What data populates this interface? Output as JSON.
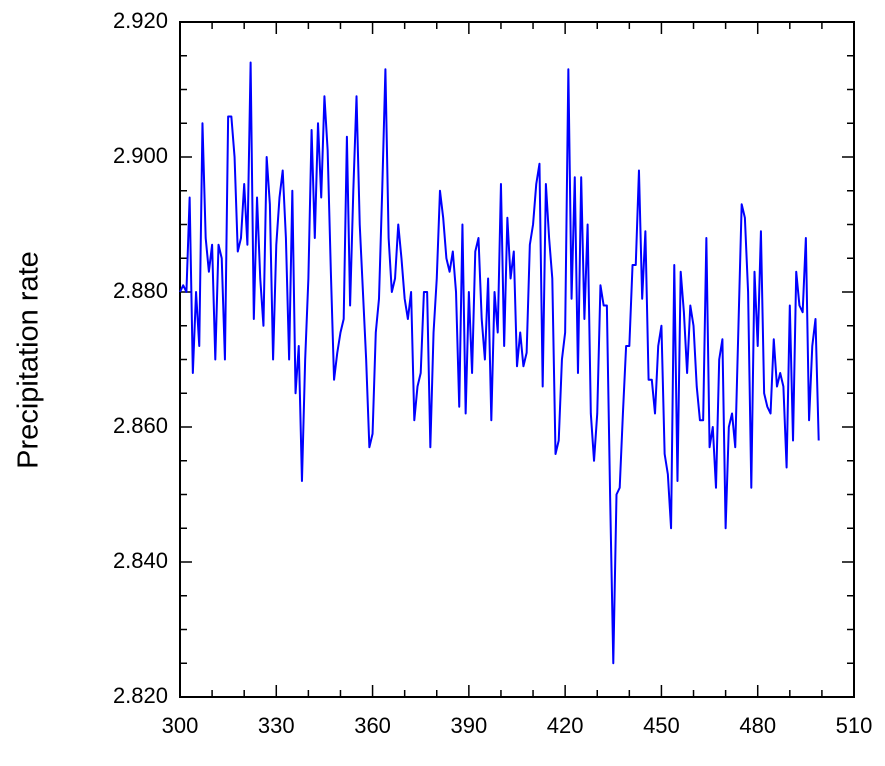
{
  "chart_data": {
    "type": "line",
    "ylabel": "Precipitation rate",
    "color": "#0000ff",
    "x": [
      300,
      301,
      302,
      303,
      304,
      305,
      306,
      307,
      308,
      309,
      310,
      311,
      312,
      313,
      314,
      315,
      316,
      317,
      318,
      319,
      320,
      321,
      322,
      323,
      324,
      325,
      326,
      327,
      328,
      329,
      330,
      331,
      332,
      333,
      334,
      335,
      336,
      337,
      338,
      339,
      340,
      341,
      342,
      343,
      344,
      345,
      346,
      347,
      348,
      349,
      350,
      351,
      352,
      353,
      354,
      355,
      356,
      357,
      358,
      359,
      360,
      361,
      362,
      363,
      364,
      365,
      366,
      367,
      368,
      369,
      370,
      371,
      372,
      373,
      374,
      375,
      376,
      377,
      378,
      379,
      380,
      381,
      382,
      383,
      384,
      385,
      386,
      387,
      388,
      389,
      390,
      391,
      392,
      393,
      394,
      395,
      396,
      397,
      398,
      399,
      400,
      401,
      402,
      403,
      404,
      405,
      406,
      407,
      408,
      409,
      410,
      411,
      412,
      413,
      414,
      415,
      416,
      417,
      418,
      419,
      420,
      421,
      422,
      423,
      424,
      425,
      426,
      427,
      428,
      429,
      430,
      431,
      432,
      433,
      434,
      435,
      436,
      437,
      438,
      439,
      440,
      441,
      442,
      443,
      444,
      445,
      446,
      447,
      448,
      449,
      450,
      451,
      452,
      453,
      454,
      455,
      456,
      457,
      458,
      459,
      460,
      461,
      462,
      463,
      464,
      465,
      466,
      467,
      468,
      469,
      470,
      471,
      472,
      473,
      474,
      475,
      476,
      477,
      478,
      479,
      480,
      481,
      482,
      483,
      484,
      485,
      486,
      487,
      488,
      489,
      490,
      491,
      492,
      493,
      494,
      495,
      496,
      497,
      498,
      499
    ],
    "values": [
      2.88,
      2.881,
      2.88,
      2.894,
      2.868,
      2.88,
      2.872,
      2.905,
      2.888,
      2.883,
      2.887,
      2.87,
      2.887,
      2.885,
      2.87,
      2.906,
      2.906,
      2.9,
      2.886,
      2.888,
      2.896,
      2.887,
      2.914,
      2.876,
      2.894,
      2.882,
      2.875,
      2.9,
      2.893,
      2.87,
      2.887,
      2.894,
      2.898,
      2.888,
      2.87,
      2.895,
      2.865,
      2.872,
      2.852,
      2.87,
      2.882,
      2.904,
      2.888,
      2.905,
      2.894,
      2.909,
      2.901,
      2.883,
      2.867,
      2.871,
      2.874,
      2.876,
      2.903,
      2.878,
      2.895,
      2.909,
      2.89,
      2.88,
      2.87,
      2.857,
      2.859,
      2.874,
      2.879,
      2.895,
      2.913,
      2.888,
      2.88,
      2.882,
      2.89,
      2.885,
      2.879,
      2.876,
      2.88,
      2.861,
      2.866,
      2.868,
      2.88,
      2.88,
      2.857,
      2.874,
      2.882,
      2.895,
      2.891,
      2.885,
      2.883,
      2.886,
      2.88,
      2.863,
      2.89,
      2.862,
      2.88,
      2.868,
      2.886,
      2.888,
      2.876,
      2.87,
      2.882,
      2.861,
      2.88,
      2.874,
      2.896,
      2.872,
      2.891,
      2.882,
      2.886,
      2.869,
      2.874,
      2.869,
      2.871,
      2.887,
      2.89,
      2.896,
      2.899,
      2.866,
      2.896,
      2.888,
      2.882,
      2.856,
      2.858,
      2.87,
      2.874,
      2.913,
      2.879,
      2.897,
      2.868,
      2.897,
      2.876,
      2.89,
      2.862,
      2.855,
      2.862,
      2.881,
      2.878,
      2.878,
      2.85,
      2.825,
      2.85,
      2.851,
      2.862,
      2.872,
      2.872,
      2.884,
      2.884,
      2.898,
      2.879,
      2.889,
      2.867,
      2.867,
      2.862,
      2.872,
      2.875,
      2.856,
      2.853,
      2.845,
      2.884,
      2.852,
      2.883,
      2.877,
      2.868,
      2.878,
      2.875,
      2.866,
      2.861,
      2.861,
      2.888,
      2.857,
      2.86,
      2.851,
      2.87,
      2.873,
      2.845,
      2.86,
      2.862,
      2.857,
      2.875,
      2.893,
      2.891,
      2.88,
      2.851,
      2.883,
      2.872,
      2.889,
      2.865,
      2.863,
      2.862,
      2.873,
      2.866,
      2.868,
      2.866,
      2.854,
      2.878,
      2.858,
      2.883,
      2.878,
      2.877,
      2.888,
      2.861,
      2.872,
      2.876,
      2.858
    ],
    "xlim": [
      300,
      510
    ],
    "ylim": [
      2.82,
      2.92
    ],
    "xticks": [
      300,
      330,
      360,
      390,
      420,
      450,
      480,
      510
    ],
    "yticks": [
      {
        "value": 2.82,
        "label": "2.820"
      },
      {
        "value": 2.84,
        "label": "2.840"
      },
      {
        "value": 2.86,
        "label": "2.860"
      },
      {
        "value": 2.88,
        "label": "2.880"
      },
      {
        "value": 2.9,
        "label": "2.900"
      },
      {
        "value": 2.92,
        "label": "2.920"
      }
    ],
    "x_minor_ticks": [
      310,
      320,
      340,
      350,
      370,
      380,
      400,
      410,
      430,
      440,
      460,
      470,
      490,
      500
    ],
    "y_minor_ticks": [
      2.825,
      2.83,
      2.835,
      2.845,
      2.85,
      2.855,
      2.865,
      2.87,
      2.875,
      2.885,
      2.89,
      2.895,
      2.905,
      2.91,
      2.915
    ]
  }
}
